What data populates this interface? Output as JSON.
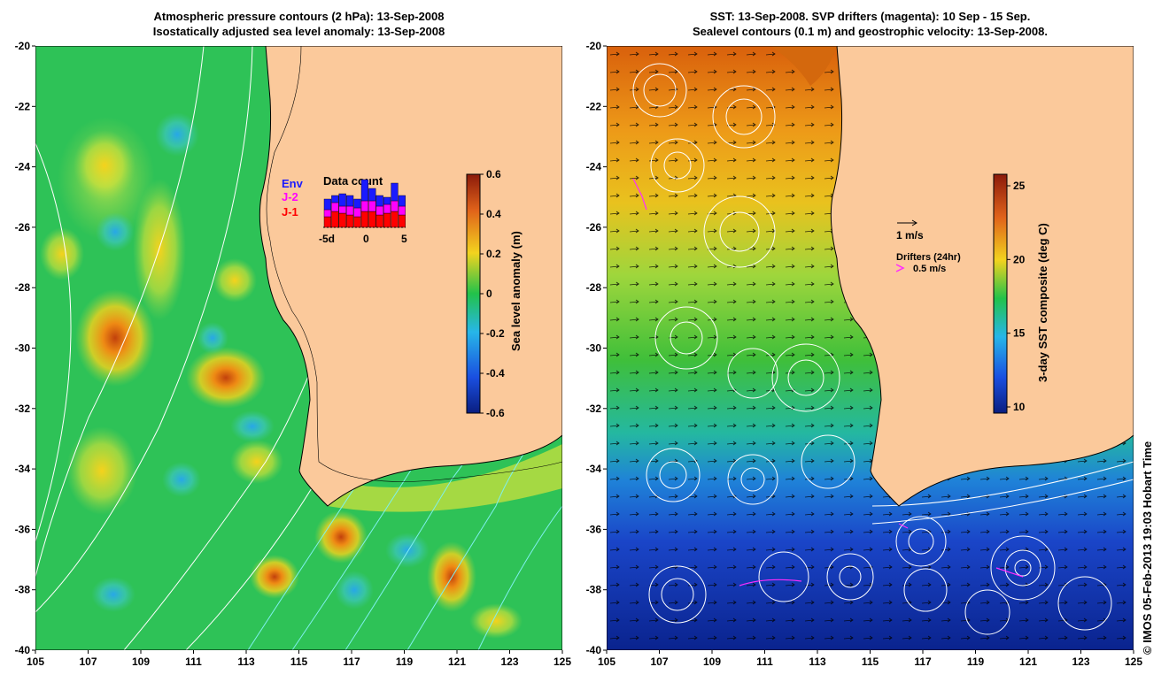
{
  "left_panel": {
    "title_line1": "Atmospheric pressure contours (2 hPa): 13-Sep-2008",
    "title_line2": "Isostatically adjusted sea level anomaly: 13-Sep-2008",
    "colorbar": {
      "label": "Sea level anomaly (m)",
      "ticks": [
        "0.6",
        "0.4",
        "0.2",
        "0",
        "-0.2",
        "-0.4",
        "-0.6"
      ]
    },
    "data_count": {
      "title": "Data count",
      "satellites": [
        "Env",
        "J-2",
        "J-1"
      ],
      "satellite_colors": [
        "#1a1aff",
        "#ff00ff",
        "#ff0000"
      ],
      "x_ticks": [
        "-5d",
        "0",
        "5"
      ],
      "bars": [
        {
          "j1": 0.3,
          "j2": 0.2,
          "env": 0.3
        },
        {
          "j1": 0.45,
          "j2": 0.25,
          "env": 0.2
        },
        {
          "j1": 0.4,
          "j2": 0.2,
          "env": 0.35
        },
        {
          "j1": 0.35,
          "j2": 0.25,
          "env": 0.3
        },
        {
          "j1": 0.3,
          "j2": 0.25,
          "env": 0.25
        },
        {
          "j1": 0.45,
          "j2": 0.3,
          "env": 0.6
        },
        {
          "j1": 0.45,
          "j2": 0.3,
          "env": 0.35
        },
        {
          "j1": 0.35,
          "j2": 0.25,
          "env": 0.3
        },
        {
          "j1": 0.4,
          "j2": 0.25,
          "env": 0.2
        },
        {
          "j1": 0.45,
          "j2": 0.3,
          "env": 0.5
        },
        {
          "j1": 0.35,
          "j2": 0.25,
          "env": 0.3
        }
      ]
    }
  },
  "right_panel": {
    "title_line1": "SST: 13-Sep-2008. SVP drifters (magenta): 10 Sep - 15 Sep.",
    "title_line2": "Sealevel contours (0.1 m) and geostrophic velocity: 13-Sep-2008.",
    "colorbar": {
      "label": "3-day SST composite (deg C)",
      "ticks": [
        "25",
        "20",
        "15",
        "10"
      ]
    },
    "velocity_scale_label": "1 m/s",
    "drifters_label": "Drifters (24hr)",
    "drifters_scale_label": "0.5 m/s"
  },
  "axes": {
    "x_ticks": [
      "105",
      "107",
      "109",
      "111",
      "113",
      "115",
      "117",
      "119",
      "121",
      "123",
      "125"
    ],
    "y_ticks": [
      "-20",
      "-22",
      "-24",
      "-26",
      "-28",
      "-30",
      "-32",
      "-34",
      "-36",
      "-38",
      "-40"
    ]
  },
  "credit": "© IMOS 05-Feb-2013 19:03 Hobart Time",
  "colors": {
    "land": "#fbc99b",
    "ocean_green": "#1fc24a",
    "sst_warm": "#e37a10",
    "sst_cold": "#0c2d9a"
  }
}
